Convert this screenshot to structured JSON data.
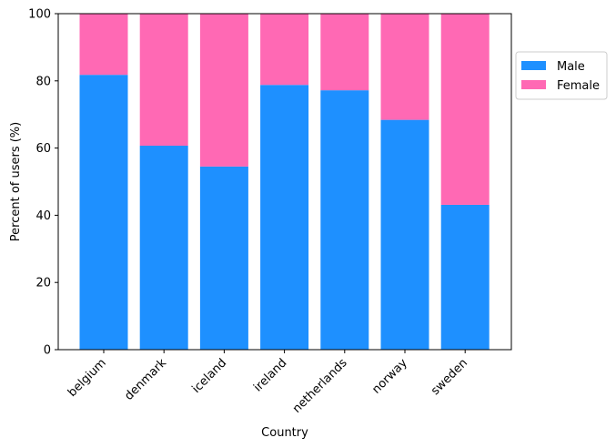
{
  "chart_data": {
    "type": "bar",
    "stacked": true,
    "categories": [
      "belgium",
      "denmark",
      "iceland",
      "ireland",
      "netherlands",
      "norway",
      "sweden"
    ],
    "series": [
      {
        "name": "Male",
        "color": "#1e90ff",
        "values": [
          81.8,
          60.7,
          54.5,
          78.8,
          77.2,
          68.4,
          43.1
        ]
      },
      {
        "name": "Female",
        "color": "#ff69b4",
        "values": [
          18.2,
          39.3,
          45.5,
          21.2,
          22.8,
          31.6,
          56.9
        ]
      }
    ],
    "xlabel": "Country",
    "ylabel": "Percent of users (%)",
    "ylim": [
      0,
      100
    ],
    "yticks": [
      "0",
      "20",
      "40",
      "60",
      "80",
      "100"
    ],
    "grid": false,
    "legend_position": "outside right, upper"
  }
}
